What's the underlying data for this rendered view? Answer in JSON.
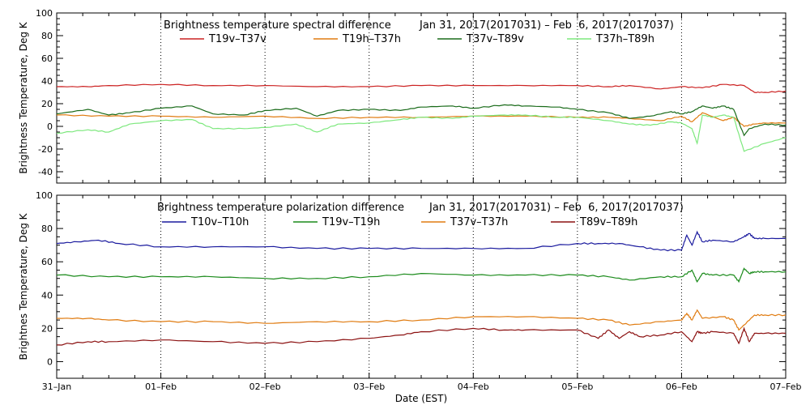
{
  "chart_data": [
    {
      "type": "line",
      "title": "Brightness temperature spectral difference",
      "period": "Jan 31, 2017(2017031) – Feb  6, 2017(2017037)",
      "ylabel": "Brightness Temperature, Deg K",
      "ylim": [
        -50,
        100
      ],
      "yticks": [
        "-40",
        "-20",
        "0",
        "20",
        "40",
        "60",
        "80",
        "100"
      ],
      "ytick_values": [
        -40,
        -20,
        0,
        20,
        40,
        60,
        80,
        100
      ],
      "xlim": [
        0,
        7
      ],
      "grid": "vertical dotted at day boundaries",
      "legend": "top",
      "series": [
        {
          "name": "T19v–T37v",
          "color": "#cc2222",
          "x": [
            0,
            0.3,
            0.5,
            1.0,
            1.5,
            2.0,
            2.5,
            3.0,
            3.5,
            4.0,
            4.5,
            5.0,
            5.3,
            5.5,
            5.8,
            6.0,
            6.2,
            6.4,
            6.6,
            6.7,
            6.8,
            7.0
          ],
          "y": [
            35,
            35,
            36,
            37,
            36,
            36,
            35,
            35,
            36,
            36,
            36,
            36,
            35,
            36,
            33,
            35,
            34,
            37,
            36,
            30,
            30,
            31
          ]
        },
        {
          "name": "T19h–T37h",
          "color": "#e07b10",
          "x": [
            0,
            0.5,
            1.0,
            1.5,
            2.0,
            2.5,
            3.0,
            3.5,
            4.0,
            4.5,
            5.0,
            5.3,
            5.5,
            5.8,
            6.0,
            6.1,
            6.2,
            6.4,
            6.5,
            6.6,
            6.7,
            6.8,
            7.0
          ],
          "y": [
            10,
            9,
            9,
            8,
            9,
            7,
            8,
            8,
            9,
            9,
            8,
            8,
            7,
            5,
            9,
            4,
            12,
            5,
            8,
            0,
            2,
            3,
            3
          ]
        },
        {
          "name": "T37v–T89v",
          "color": "#1a6b1a",
          "x": [
            0,
            0.3,
            0.5,
            0.7,
            1.0,
            1.3,
            1.5,
            1.8,
            2.0,
            2.3,
            2.5,
            2.7,
            3.0,
            3.3,
            3.5,
            3.8,
            4.0,
            4.3,
            4.5,
            4.8,
            5.0,
            5.3,
            5.5,
            5.7,
            5.9,
            6.0,
            6.1,
            6.2,
            6.3,
            6.4,
            6.5,
            6.6,
            6.65,
            6.8,
            7.0
          ],
          "y": [
            11,
            15,
            10,
            12,
            16,
            18,
            11,
            10,
            14,
            16,
            9,
            14,
            15,
            14,
            17,
            18,
            16,
            19,
            18,
            17,
            15,
            12,
            7,
            9,
            13,
            11,
            13,
            18,
            16,
            18,
            15,
            -8,
            -2,
            2,
            1
          ]
        },
        {
          "name": "T37h–T89h",
          "color": "#7de87d",
          "x": [
            0,
            0.3,
            0.5,
            0.7,
            1.0,
            1.3,
            1.5,
            1.8,
            2.0,
            2.3,
            2.5,
            2.7,
            3.0,
            3.3,
            3.5,
            3.8,
            4.0,
            4.3,
            4.5,
            4.8,
            5.0,
            5.3,
            5.5,
            5.7,
            5.9,
            6.0,
            6.1,
            6.15,
            6.2,
            6.3,
            6.4,
            6.5,
            6.6,
            6.8,
            7.0
          ],
          "y": [
            -6,
            -3,
            -5,
            2,
            5,
            6,
            -2,
            -2,
            -1,
            2,
            -5,
            2,
            3,
            6,
            8,
            7,
            9,
            10,
            10,
            8,
            8,
            5,
            2,
            1,
            4,
            3,
            -2,
            -15,
            10,
            8,
            10,
            8,
            -22,
            -15,
            -10
          ]
        }
      ]
    },
    {
      "type": "line",
      "title": "Brightness temperature polarization difference",
      "period": "Jan 31, 2017(2017031) – Feb  6, 2017(2017037)",
      "ylabel": "Brightnes Temperature, Deg K",
      "ylim": [
        -10,
        100
      ],
      "yticks": [
        "0",
        "20",
        "40",
        "60",
        "80",
        "100"
      ],
      "ytick_values": [
        0,
        20,
        40,
        60,
        80,
        100
      ],
      "xlim": [
        0,
        7
      ],
      "grid": "vertical dotted at day boundaries",
      "legend": "top",
      "xlabel": "Date (EST)",
      "xticks": [
        "31–Jan",
        "01–Feb",
        "02–Feb",
        "03–Feb",
        "04–Feb",
        "05–Feb",
        "06–Feb",
        "07–Feb"
      ],
      "xtick_values": [
        0,
        1,
        2,
        3,
        4,
        5,
        6,
        7
      ],
      "series": [
        {
          "name": "T10v–T10h",
          "color": "#1a1a9e",
          "x": [
            0,
            0.2,
            0.4,
            0.6,
            1.0,
            1.5,
            2.0,
            2.5,
            3.0,
            3.5,
            4.0,
            4.5,
            5.0,
            5.2,
            5.4,
            5.6,
            5.8,
            6.0,
            6.05,
            6.1,
            6.15,
            6.2,
            6.3,
            6.5,
            6.6,
            6.65,
            6.7,
            6.8,
            7.0
          ],
          "y": [
            71,
            72,
            73,
            71,
            69,
            69,
            69,
            68,
            68,
            68,
            68,
            68,
            71,
            71,
            71,
            69,
            67,
            67,
            76,
            70,
            78,
            72,
            73,
            72,
            75,
            77,
            74,
            74,
            74
          ]
        },
        {
          "name": "T19v–T19h",
          "color": "#1a8a1a",
          "x": [
            0,
            0.5,
            1.0,
            1.5,
            2.0,
            2.5,
            3.0,
            3.5,
            4.0,
            4.5,
            5.0,
            5.3,
            5.5,
            5.8,
            6.0,
            6.1,
            6.15,
            6.2,
            6.3,
            6.5,
            6.55,
            6.6,
            6.65,
            6.7,
            6.8,
            7.0
          ],
          "y": [
            52,
            51,
            51,
            51,
            50,
            50,
            51,
            53,
            52,
            52,
            52,
            51,
            49,
            51,
            51,
            55,
            48,
            53,
            52,
            52,
            48,
            56,
            53,
            54,
            54,
            54
          ]
        },
        {
          "name": "T37v–T37h",
          "color": "#e07b10",
          "x": [
            0,
            0.3,
            0.5,
            1.0,
            1.5,
            2.0,
            2.5,
            3.0,
            3.5,
            4.0,
            4.5,
            5.0,
            5.3,
            5.5,
            5.8,
            6.0,
            6.05,
            6.1,
            6.15,
            6.2,
            6.4,
            6.5,
            6.55,
            6.6,
            6.7,
            6.8,
            7.0
          ],
          "y": [
            26,
            26,
            25,
            24,
            24,
            23,
            24,
            24,
            25,
            27,
            27,
            26,
            25,
            22,
            24,
            25,
            29,
            25,
            31,
            26,
            27,
            25,
            19,
            22,
            28,
            28,
            28
          ]
        },
        {
          "name": "T89v–T89h",
          "color": "#8b1010",
          "x": [
            0,
            0.3,
            0.5,
            1.0,
            1.5,
            2.0,
            2.5,
            3.0,
            3.3,
            3.5,
            4.0,
            4.3,
            4.5,
            5.0,
            5.2,
            5.3,
            5.4,
            5.5,
            5.6,
            5.8,
            6.0,
            6.1,
            6.15,
            6.2,
            6.3,
            6.5,
            6.55,
            6.6,
            6.65,
            6.7,
            6.8,
            7.0
          ],
          "y": [
            10,
            12,
            12,
            13,
            12,
            11,
            12,
            14,
            16,
            18,
            20,
            19,
            19,
            19,
            14,
            19,
            14,
            18,
            15,
            16,
            18,
            12,
            18,
            17,
            18,
            17,
            11,
            20,
            12,
            17,
            17,
            17
          ]
        }
      ]
    }
  ]
}
